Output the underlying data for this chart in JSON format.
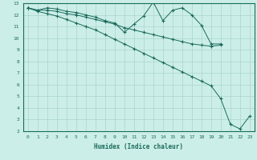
{
  "xlabel": "Humidex (Indice chaleur)",
  "bg_color": "#cceee8",
  "grid_color": "#aad4ce",
  "line_color": "#1a6b5a",
  "xlim": [
    -0.5,
    23.5
  ],
  "ylim": [
    2,
    13
  ],
  "xticks": [
    0,
    1,
    2,
    3,
    4,
    5,
    6,
    7,
    8,
    9,
    10,
    11,
    12,
    13,
    14,
    15,
    16,
    17,
    18,
    19,
    20,
    21,
    22,
    23
  ],
  "yticks": [
    2,
    3,
    4,
    5,
    6,
    7,
    8,
    9,
    10,
    11,
    12,
    13
  ],
  "lines": [
    {
      "x": [
        0,
        1,
        2,
        3,
        4,
        5,
        6,
        7,
        8,
        9,
        10,
        11,
        12,
        13,
        14,
        15,
        16,
        17,
        18,
        19,
        20
      ],
      "y": [
        12.6,
        12.4,
        12.6,
        12.5,
        12.3,
        12.2,
        12.0,
        11.8,
        11.5,
        11.3,
        10.5,
        11.2,
        11.9,
        13.1,
        11.5,
        12.4,
        12.6,
        12.0,
        11.1,
        9.5,
        9.5
      ],
      "marker": "+"
    },
    {
      "x": [
        0,
        1,
        2,
        3,
        4,
        5,
        6,
        7,
        8,
        9,
        10,
        11,
        12,
        13,
        14,
        15,
        16,
        17,
        18,
        19,
        20
      ],
      "y": [
        12.6,
        12.4,
        12.4,
        12.3,
        12.1,
        12.0,
        11.8,
        11.6,
        11.4,
        11.2,
        10.9,
        10.7,
        10.5,
        10.3,
        10.1,
        9.9,
        9.7,
        9.5,
        9.4,
        9.3,
        9.4
      ],
      "marker": "+"
    },
    {
      "x": [
        0,
        1,
        2,
        3,
        4,
        5,
        6,
        7,
        8,
        9,
        10,
        11,
        12,
        13,
        14,
        15,
        16,
        17,
        18,
        19,
        20,
        21,
        22,
        23
      ],
      "y": [
        12.6,
        12.3,
        12.1,
        11.9,
        11.6,
        11.3,
        11.0,
        10.7,
        10.3,
        9.9,
        9.5,
        9.1,
        8.7,
        8.3,
        7.9,
        7.5,
        7.1,
        6.7,
        6.3,
        5.9,
        4.8,
        2.6,
        2.2,
        3.3
      ],
      "marker": "+"
    }
  ]
}
